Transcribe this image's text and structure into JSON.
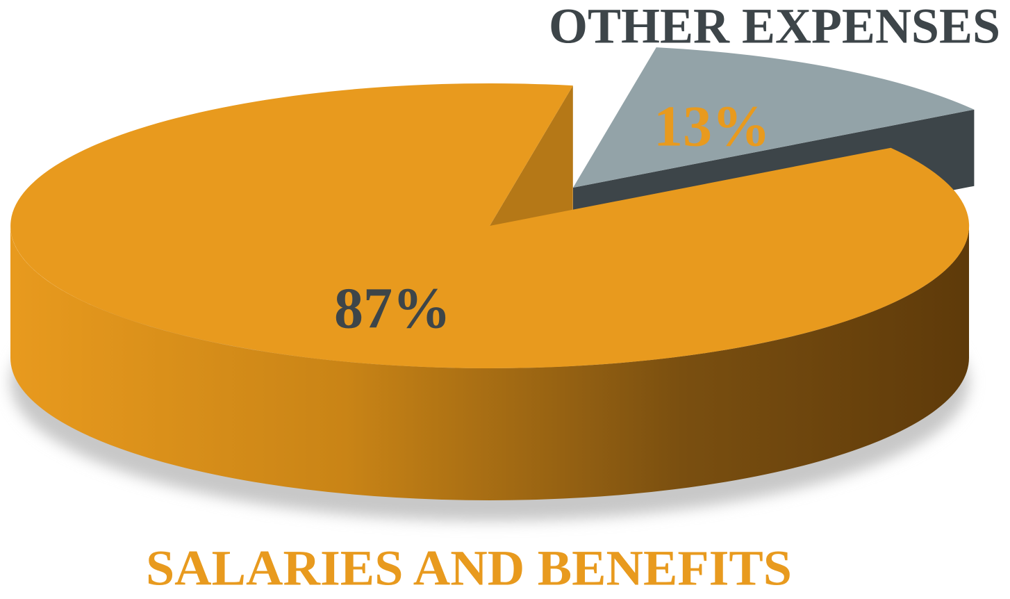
{
  "chart_data": {
    "type": "pie",
    "categories": [
      "SALARIES AND BENEFITS",
      "OTHER EXPENSES"
    ],
    "values": [
      87,
      13
    ],
    "value_labels": [
      "87%",
      "13%"
    ],
    "colors": [
      "#e89a1e",
      "#93a3a8"
    ]
  }
}
